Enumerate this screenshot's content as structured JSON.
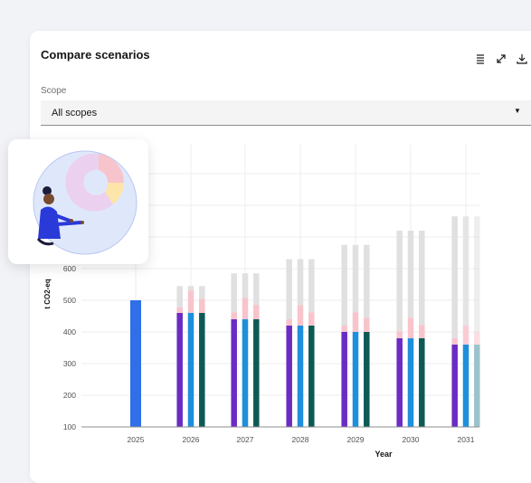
{
  "panel": {
    "title": "Compare scenarios"
  },
  "toolbar": {
    "icons": [
      "table-icon",
      "expand-icon",
      "download-icon"
    ]
  },
  "scope": {
    "label": "Scope",
    "value": "All scopes"
  },
  "chart_data": {
    "type": "bar",
    "stacked": true,
    "ylabel": "t CO2-eq",
    "xlabel": "Year",
    "ylim": [
      100,
      1000
    ],
    "yticks": [
      100,
      200,
      300,
      400,
      500,
      600
    ],
    "categories": [
      "2025",
      "2026",
      "2027",
      "2028",
      "2029",
      "2030",
      "2031"
    ],
    "grid": true,
    "colors": {
      "baseline": "#2f6fe8",
      "scenario_1": "#6a2cc4",
      "scenario_2": "#1e8fdc",
      "scenario_3": "#0d5a55",
      "scenario_3_faded": "#9cc3cc",
      "pink": "#f8c4cc",
      "grey": "#e0e0e0"
    },
    "baseline": {
      "year": "2025",
      "value": 500
    },
    "groups": [
      {
        "year": "2026",
        "bars": [
          {
            "base": 460,
            "pink": 478,
            "top": 545
          },
          {
            "base": 460,
            "pink": 530,
            "top": 545
          },
          {
            "base": 460,
            "pink": 505,
            "top": 545
          }
        ]
      },
      {
        "year": "2027",
        "bars": [
          {
            "base": 440,
            "pink": 462,
            "top": 585
          },
          {
            "base": 440,
            "pink": 508,
            "top": 585
          },
          {
            "base": 440,
            "pink": 485,
            "top": 585
          }
        ]
      },
      {
        "year": "2028",
        "bars": [
          {
            "base": 420,
            "pink": 440,
            "top": 630
          },
          {
            "base": 420,
            "pink": 485,
            "top": 630
          },
          {
            "base": 420,
            "pink": 462,
            "top": 630
          }
        ]
      },
      {
        "year": "2029",
        "bars": [
          {
            "base": 400,
            "pink": 420,
            "top": 675
          },
          {
            "base": 400,
            "pink": 462,
            "top": 675
          },
          {
            "base": 400,
            "pink": 445,
            "top": 675
          }
        ]
      },
      {
        "year": "2030",
        "bars": [
          {
            "base": 380,
            "pink": 402,
            "top": 720
          },
          {
            "base": 380,
            "pink": 445,
            "top": 720
          },
          {
            "base": 380,
            "pink": 422,
            "top": 720
          }
        ]
      },
      {
        "year": "2031",
        "bars": [
          {
            "base": 360,
            "pink": 380,
            "top": 765
          },
          {
            "base": 360,
            "pink": 420,
            "top": 765
          },
          {
            "base": 360,
            "pink": 400,
            "top": 765
          }
        ]
      }
    ]
  }
}
